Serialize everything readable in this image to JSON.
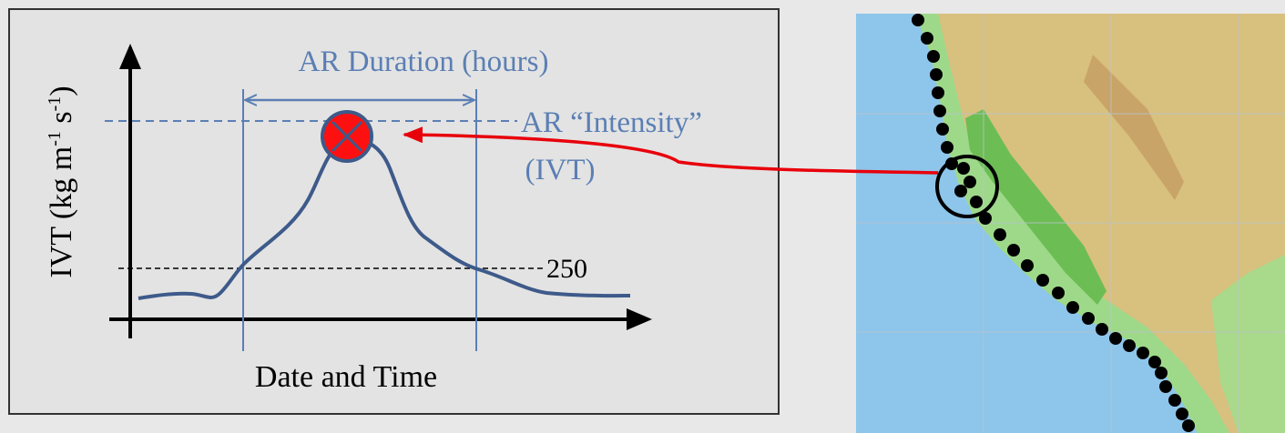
{
  "panel": {
    "y_axis_label": {
      "main": "IVT (kg m",
      "sup1": "-1",
      "mid": " s",
      "sup2": "-1",
      "end": ")"
    },
    "x_axis_label": "Date and Time",
    "duration_label": "AR Duration (hours)",
    "intensity_label": "AR “Intensity”",
    "intensity_unit": "(IVT)",
    "threshold_label": "250"
  }
}
